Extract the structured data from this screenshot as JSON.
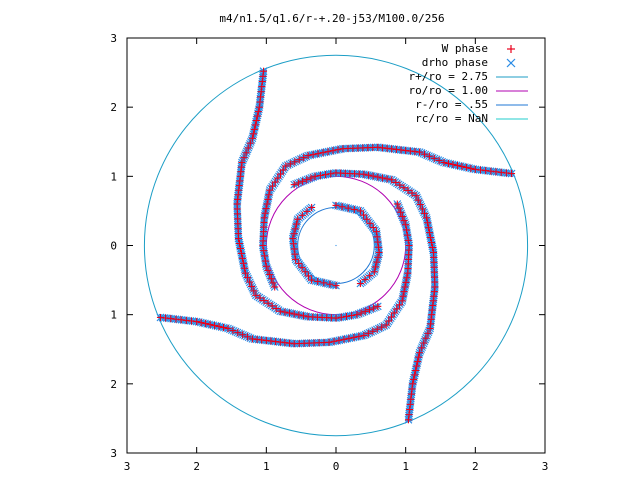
{
  "chart_data": {
    "type": "scatter",
    "title": "m4/n1.5/q1.6/r-+.20-j53/M100.0/256",
    "xlabel": "",
    "ylabel": "",
    "xlim": [
      -3,
      3
    ],
    "ylim": [
      -3,
      3
    ],
    "x_tick_labels": [
      "3",
      "2",
      "1",
      "0",
      "1",
      "2",
      "3"
    ],
    "y_tick_labels": [
      "3",
      "2",
      "1",
      "0",
      "1",
      "2",
      "3"
    ],
    "x_ticks": [
      -3,
      -2,
      -1,
      0,
      1,
      2,
      3
    ],
    "y_ticks": [
      3,
      2,
      1,
      0,
      -1,
      -2,
      -3
    ],
    "grid": false,
    "legend_position": "top-right",
    "colors": {
      "w_phase": "#e8001c",
      "drho_phase": "#2a8ce6",
      "r_plus": "#1c9ec6",
      "r_o": "#b000b0",
      "r_minus": "#1f77d4",
      "r_c": "#22cccc"
    },
    "series": [
      {
        "name": "W phase",
        "marker": "plus",
        "arms": [
          {
            "points": [
              [
                -1.04,
                2.52
              ],
              [
                -1.1,
                2.0
              ],
              [
                -1.2,
                1.55
              ],
              [
                -1.35,
                1.2
              ],
              [
                -1.42,
                0.6
              ],
              [
                -1.4,
                0.1
              ],
              [
                -1.3,
                -0.4
              ],
              [
                -1.15,
                -0.72
              ],
              [
                -0.8,
                -0.95
              ],
              [
                -0.4,
                -1.03
              ],
              [
                0.0,
                -1.05
              ],
              [
                0.3,
                -1.0
              ],
              [
                0.6,
                -0.88
              ]
            ]
          },
          {
            "points": [
              [
                -2.52,
                -1.04
              ],
              [
                -2.0,
                -1.1
              ],
              [
                -1.55,
                -1.2
              ],
              [
                -1.2,
                -1.35
              ],
              [
                -0.6,
                -1.42
              ],
              [
                -0.1,
                -1.4
              ],
              [
                0.4,
                -1.3
              ],
              [
                0.72,
                -1.15
              ],
              [
                0.95,
                -0.8
              ],
              [
                1.03,
                -0.4
              ],
              [
                1.05,
                0.0
              ],
              [
                1.0,
                0.3
              ],
              [
                0.88,
                0.6
              ]
            ]
          },
          {
            "points": [
              [
                1.04,
                -2.52
              ],
              [
                1.1,
                -2.0
              ],
              [
                1.2,
                -1.55
              ],
              [
                1.35,
                -1.2
              ],
              [
                1.42,
                -0.6
              ],
              [
                1.4,
                -0.1
              ],
              [
                1.3,
                0.4
              ],
              [
                1.15,
                0.72
              ],
              [
                0.8,
                0.95
              ],
              [
                0.4,
                1.03
              ],
              [
                0.0,
                1.05
              ],
              [
                -0.3,
                1.0
              ],
              [
                -0.6,
                0.88
              ]
            ]
          },
          {
            "points": [
              [
                2.52,
                1.04
              ],
              [
                2.0,
                1.1
              ],
              [
                1.55,
                1.2
              ],
              [
                1.2,
                1.35
              ],
              [
                0.6,
                1.42
              ],
              [
                0.1,
                1.4
              ],
              [
                -0.4,
                1.3
              ],
              [
                -0.72,
                1.15
              ],
              [
                -0.95,
                0.8
              ],
              [
                -1.03,
                0.4
              ],
              [
                -1.05,
                0.0
              ],
              [
                -1.0,
                -0.3
              ],
              [
                -0.88,
                -0.6
              ]
            ]
          }
        ]
      },
      {
        "name": "drho phase",
        "marker": "cross",
        "arms": [
          {
            "points": [
              [
                -1.04,
                2.52
              ],
              [
                -1.1,
                2.0
              ],
              [
                -1.2,
                1.55
              ],
              [
                -1.35,
                1.2
              ],
              [
                -1.42,
                0.6
              ],
              [
                -1.4,
                0.1
              ],
              [
                -1.3,
                -0.4
              ],
              [
                -1.15,
                -0.72
              ],
              [
                -0.8,
                -0.95
              ],
              [
                -0.4,
                -1.03
              ],
              [
                0.0,
                -1.05
              ],
              [
                0.3,
                -1.0
              ],
              [
                0.6,
                -0.88
              ]
            ]
          },
          {
            "points": [
              [
                -2.52,
                -1.04
              ],
              [
                -2.0,
                -1.1
              ],
              [
                -1.55,
                -1.2
              ],
              [
                -1.2,
                -1.35
              ],
              [
                -0.6,
                -1.42
              ],
              [
                -0.1,
                -1.4
              ],
              [
                0.4,
                -1.3
              ],
              [
                0.72,
                -1.15
              ],
              [
                0.95,
                -0.8
              ],
              [
                1.03,
                -0.4
              ],
              [
                1.05,
                0.0
              ],
              [
                1.0,
                0.3
              ],
              [
                0.88,
                0.6
              ]
            ]
          },
          {
            "points": [
              [
                1.04,
                -2.52
              ],
              [
                1.1,
                -2.0
              ],
              [
                1.2,
                -1.55
              ],
              [
                1.35,
                -1.2
              ],
              [
                1.42,
                -0.6
              ],
              [
                1.4,
                -0.1
              ],
              [
                1.3,
                0.4
              ],
              [
                1.15,
                0.72
              ],
              [
                0.8,
                0.95
              ],
              [
                0.4,
                1.03
              ],
              [
                0.0,
                1.05
              ],
              [
                -0.3,
                1.0
              ],
              [
                -0.6,
                0.88
              ]
            ]
          },
          {
            "points": [
              [
                2.52,
                1.04
              ],
              [
                2.0,
                1.1
              ],
              [
                1.55,
                1.2
              ],
              [
                1.2,
                1.35
              ],
              [
                0.6,
                1.42
              ],
              [
                0.1,
                1.4
              ],
              [
                -0.4,
                1.3
              ],
              [
                -0.72,
                1.15
              ],
              [
                -0.95,
                0.8
              ],
              [
                -1.03,
                0.4
              ],
              [
                -1.05,
                0.0
              ],
              [
                -1.0,
                -0.3
              ],
              [
                -0.88,
                -0.6
              ]
            ]
          }
        ]
      },
      {
        "name": "r+/ro = 2.75",
        "type": "circle",
        "radius": 2.75
      },
      {
        "name": "ro/ro = 1.00",
        "type": "circle",
        "radius": 1.0
      },
      {
        "name": "r-/ro = .55",
        "type": "circle",
        "radius": 0.55
      },
      {
        "name": "rc/ro = NaN",
        "type": "circle",
        "radius": null
      }
    ],
    "inner_arms": [
      {
        "points": [
          [
            0.0,
            0.58
          ],
          [
            0.35,
            0.5
          ],
          [
            0.58,
            0.2
          ],
          [
            0.62,
            -0.1
          ],
          [
            0.55,
            -0.38
          ],
          [
            0.35,
            -0.55
          ]
        ]
      },
      {
        "points": [
          [
            0.0,
            -0.58
          ],
          [
            -0.35,
            -0.5
          ],
          [
            -0.58,
            -0.2
          ],
          [
            -0.62,
            0.1
          ],
          [
            -0.55,
            0.38
          ],
          [
            -0.35,
            0.55
          ]
        ]
      }
    ]
  }
}
